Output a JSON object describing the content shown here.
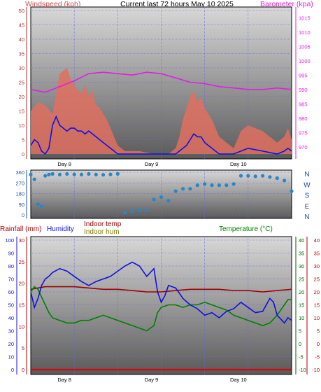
{
  "page": {
    "title": "Current last 72 hours May 10 2025"
  },
  "colors": {
    "page_bg": "#ffffff",
    "plot_top": "#d8d8d8",
    "plot_bottom": "#5a5a5a",
    "grid": "#6a6ad8",
    "windspeed_area": "#e0705f",
    "windspeed_line": "#1010e0",
    "barometer": "#e020e0",
    "wind_dir": "#2a86c6",
    "temperature": "#008000",
    "humidity": "#1010e0",
    "indoor_temp": "#a00000",
    "indoor_hum": "#808000",
    "rainfall": "#e00000",
    "axis_blue": "#1010e0",
    "axis_red": "#b00000",
    "label_dark": "#000000"
  },
  "chart_data": [
    {
      "id": "wind",
      "type": "area",
      "title": "Current last 72 hours May 10 2025",
      "xlabel": "",
      "x_tick_labels": [
        "Day 8",
        "Day 9",
        "Day 10"
      ],
      "x_range_hours": [
        0,
        72
      ],
      "left_axis": {
        "label": "Windspeed (kph)",
        "ticks": [
          "50",
          "45",
          "40",
          "35",
          "30",
          "25",
          "20",
          "15",
          "10",
          "5",
          "0"
        ],
        "range": [
          0,
          50
        ]
      },
      "right_axis": {
        "label": "Barometer (kpa)",
        "ticks": [
          "1015",
          "1010",
          "1005",
          "1000",
          "995",
          "990",
          "985",
          "980",
          "975",
          "970"
        ],
        "range": [
          967.5,
          1017.5
        ]
      },
      "series": [
        {
          "key": "gust",
          "hours": [
            0,
            2,
            4,
            6,
            8,
            10,
            11,
            12,
            13,
            14,
            15,
            16,
            17,
            18,
            19,
            20,
            21,
            22,
            23,
            24,
            26,
            30,
            34,
            38,
            40,
            41,
            42,
            43,
            44,
            45,
            46,
            47,
            48,
            49,
            50,
            51,
            52,
            54,
            56,
            58,
            60,
            64,
            68,
            70,
            71,
            72
          ],
          "values": [
            15,
            18,
            17,
            14,
            28,
            30,
            26,
            24,
            22,
            21,
            24,
            20,
            22,
            17,
            16,
            14,
            12,
            9,
            6,
            3,
            1,
            1,
            0,
            0,
            2,
            6,
            12,
            16,
            20,
            22,
            18,
            20,
            16,
            14,
            12,
            9,
            6,
            4,
            2,
            8,
            10,
            8,
            4,
            6,
            9,
            5
          ]
        },
        {
          "key": "average",
          "hours": [
            0,
            1,
            2,
            3,
            4,
            5,
            6,
            7,
            8,
            9,
            10,
            11,
            12,
            13,
            14,
            15,
            16,
            17,
            18,
            19,
            20,
            21,
            22,
            23,
            24,
            26,
            30,
            34,
            38,
            40,
            41,
            42,
            43,
            44,
            45,
            46,
            47,
            48,
            49,
            50,
            51,
            52,
            54,
            56,
            58,
            60,
            64,
            68,
            70,
            71,
            72
          ],
          "values": [
            3,
            5,
            4,
            1,
            0,
            2,
            10,
            13,
            10,
            9,
            8,
            9,
            9,
            8,
            8,
            7,
            8,
            7,
            6,
            5,
            4,
            3,
            2,
            1,
            0,
            0,
            0,
            0,
            0,
            0,
            1,
            2,
            3,
            5,
            7,
            6,
            6,
            4,
            3,
            2,
            1,
            0,
            0,
            0,
            1,
            2,
            1,
            0,
            1,
            2,
            1
          ]
        },
        {
          "key": "barometer",
          "hours": [
            0,
            4,
            8,
            12,
            16,
            20,
            24,
            28,
            32,
            36,
            40,
            44,
            48,
            52,
            56,
            60,
            64,
            68,
            72
          ],
          "values": [
            990,
            989,
            991,
            993,
            995.5,
            996,
            995.5,
            995,
            996,
            995.5,
            994,
            992.5,
            992,
            991,
            990.5,
            990,
            990,
            990.5,
            990
          ]
        }
      ]
    },
    {
      "id": "wind_direction",
      "type": "scatter",
      "left_axis": {
        "label": "",
        "ticks": [
          "360",
          "270",
          "180",
          "90",
          "0"
        ],
        "range": [
          0,
          360
        ]
      },
      "right_axis": {
        "label": "",
        "ticks": [
          "N",
          "W",
          "S",
          "E",
          "N"
        ]
      },
      "series": [
        {
          "key": "direction",
          "hours": [
            0,
            1,
            2,
            3,
            4,
            5,
            6,
            8,
            10,
            12,
            14,
            16,
            18,
            20,
            22,
            24,
            26,
            28,
            30,
            32,
            34,
            36,
            38,
            40,
            42,
            44,
            46,
            48,
            50,
            52,
            54,
            56,
            58,
            60,
            62,
            64,
            66,
            68,
            70,
            72
          ],
          "values": [
            340,
            300,
            90,
            70,
            330,
            340,
            345,
            340,
            345,
            342,
            340,
            345,
            340,
            338,
            342,
            346,
            20,
            30,
            40,
            40,
            130,
            150,
            120,
            200,
            220,
            220,
            250,
            260,
            250,
            250,
            250,
            260,
            330,
            330,
            325,
            330,
            320,
            310,
            290,
            200
          ]
        }
      ]
    },
    {
      "id": "temp_hum",
      "type": "line",
      "labels": {
        "rainfall": "Rainfall (mm)",
        "humidity": "Humidity",
        "indoor_temp": "Indoor temp",
        "indoor_hum": "Indoor hum",
        "temperature": "Temperature (°C)"
      },
      "x_tick_labels": [
        "Day 8",
        "Day 9",
        "Day 10"
      ],
      "humidity_axis": {
        "ticks": [
          "100",
          "90",
          "80",
          "70",
          "60",
          "50",
          "40",
          "30",
          "20",
          "10",
          "0"
        ],
        "range": [
          0,
          100
        ]
      },
      "rain_axis": {
        "ticks": [
          "30",
          "25",
          "20",
          "15",
          "10",
          "5",
          "0"
        ],
        "range": [
          0,
          30
        ]
      },
      "temp_axis_inner": {
        "ticks": [
          "40",
          "35",
          "30",
          "25",
          "20",
          "15",
          "10",
          "5",
          "0",
          "-5",
          "-10"
        ],
        "range": [
          -10,
          40
        ]
      },
      "temp_axis_outer": {
        "ticks": [
          "40",
          "35",
          "30",
          "25",
          "20",
          "15",
          "10",
          "5",
          "0",
          "-5",
          "-10"
        ],
        "range": [
          -10,
          40
        ]
      },
      "series": [
        {
          "key": "temperature",
          "hours": [
            0,
            1,
            2,
            3,
            4,
            5,
            6,
            8,
            10,
            12,
            14,
            16,
            18,
            20,
            22,
            24,
            26,
            28,
            30,
            32,
            34,
            35,
            36,
            38,
            40,
            42,
            44,
            46,
            48,
            50,
            52,
            54,
            56,
            58,
            60,
            62,
            64,
            66,
            68,
            70,
            71,
            72
          ],
          "values": [
            20,
            22,
            21,
            18,
            15,
            12,
            10,
            9,
            8,
            8,
            9,
            9,
            10,
            11,
            10,
            9,
            8,
            7,
            6,
            5,
            7,
            12,
            14,
            15,
            15,
            14,
            15,
            15,
            16,
            15,
            14,
            13,
            11,
            10,
            9,
            8,
            7,
            8,
            11,
            15,
            17,
            17
          ]
        },
        {
          "key": "humidity",
          "hours": [
            0,
            1,
            2,
            3,
            4,
            5,
            6,
            8,
            10,
            12,
            14,
            16,
            18,
            20,
            22,
            24,
            26,
            28,
            30,
            32,
            34,
            35,
            36,
            37,
            38,
            40,
            42,
            44,
            46,
            48,
            50,
            52,
            54,
            56,
            58,
            60,
            62,
            64,
            66,
            67,
            68,
            70,
            71,
            72
          ],
          "values": [
            60,
            48,
            55,
            65,
            70,
            72,
            75,
            78,
            76,
            72,
            68,
            65,
            68,
            70,
            72,
            76,
            80,
            83,
            80,
            72,
            78,
            60,
            52,
            57,
            65,
            63,
            55,
            50,
            47,
            42,
            44,
            40,
            45,
            47,
            52,
            48,
            44,
            45,
            55,
            52,
            42,
            36,
            40,
            38
          ]
        },
        {
          "key": "indoor_temp",
          "hours": [
            0,
            4,
            8,
            12,
            16,
            20,
            24,
            28,
            32,
            36,
            40,
            44,
            48,
            52,
            56,
            60,
            64,
            68,
            72
          ],
          "values": [
            21,
            22,
            22,
            22,
            21.5,
            21,
            21,
            20.5,
            20,
            20,
            20.5,
            21,
            21,
            21,
            20.5,
            20.5,
            20,
            20.5,
            21
          ]
        },
        {
          "key": "rainfall",
          "hours": [
            0,
            72
          ],
          "values": [
            0,
            0
          ]
        }
      ]
    }
  ]
}
